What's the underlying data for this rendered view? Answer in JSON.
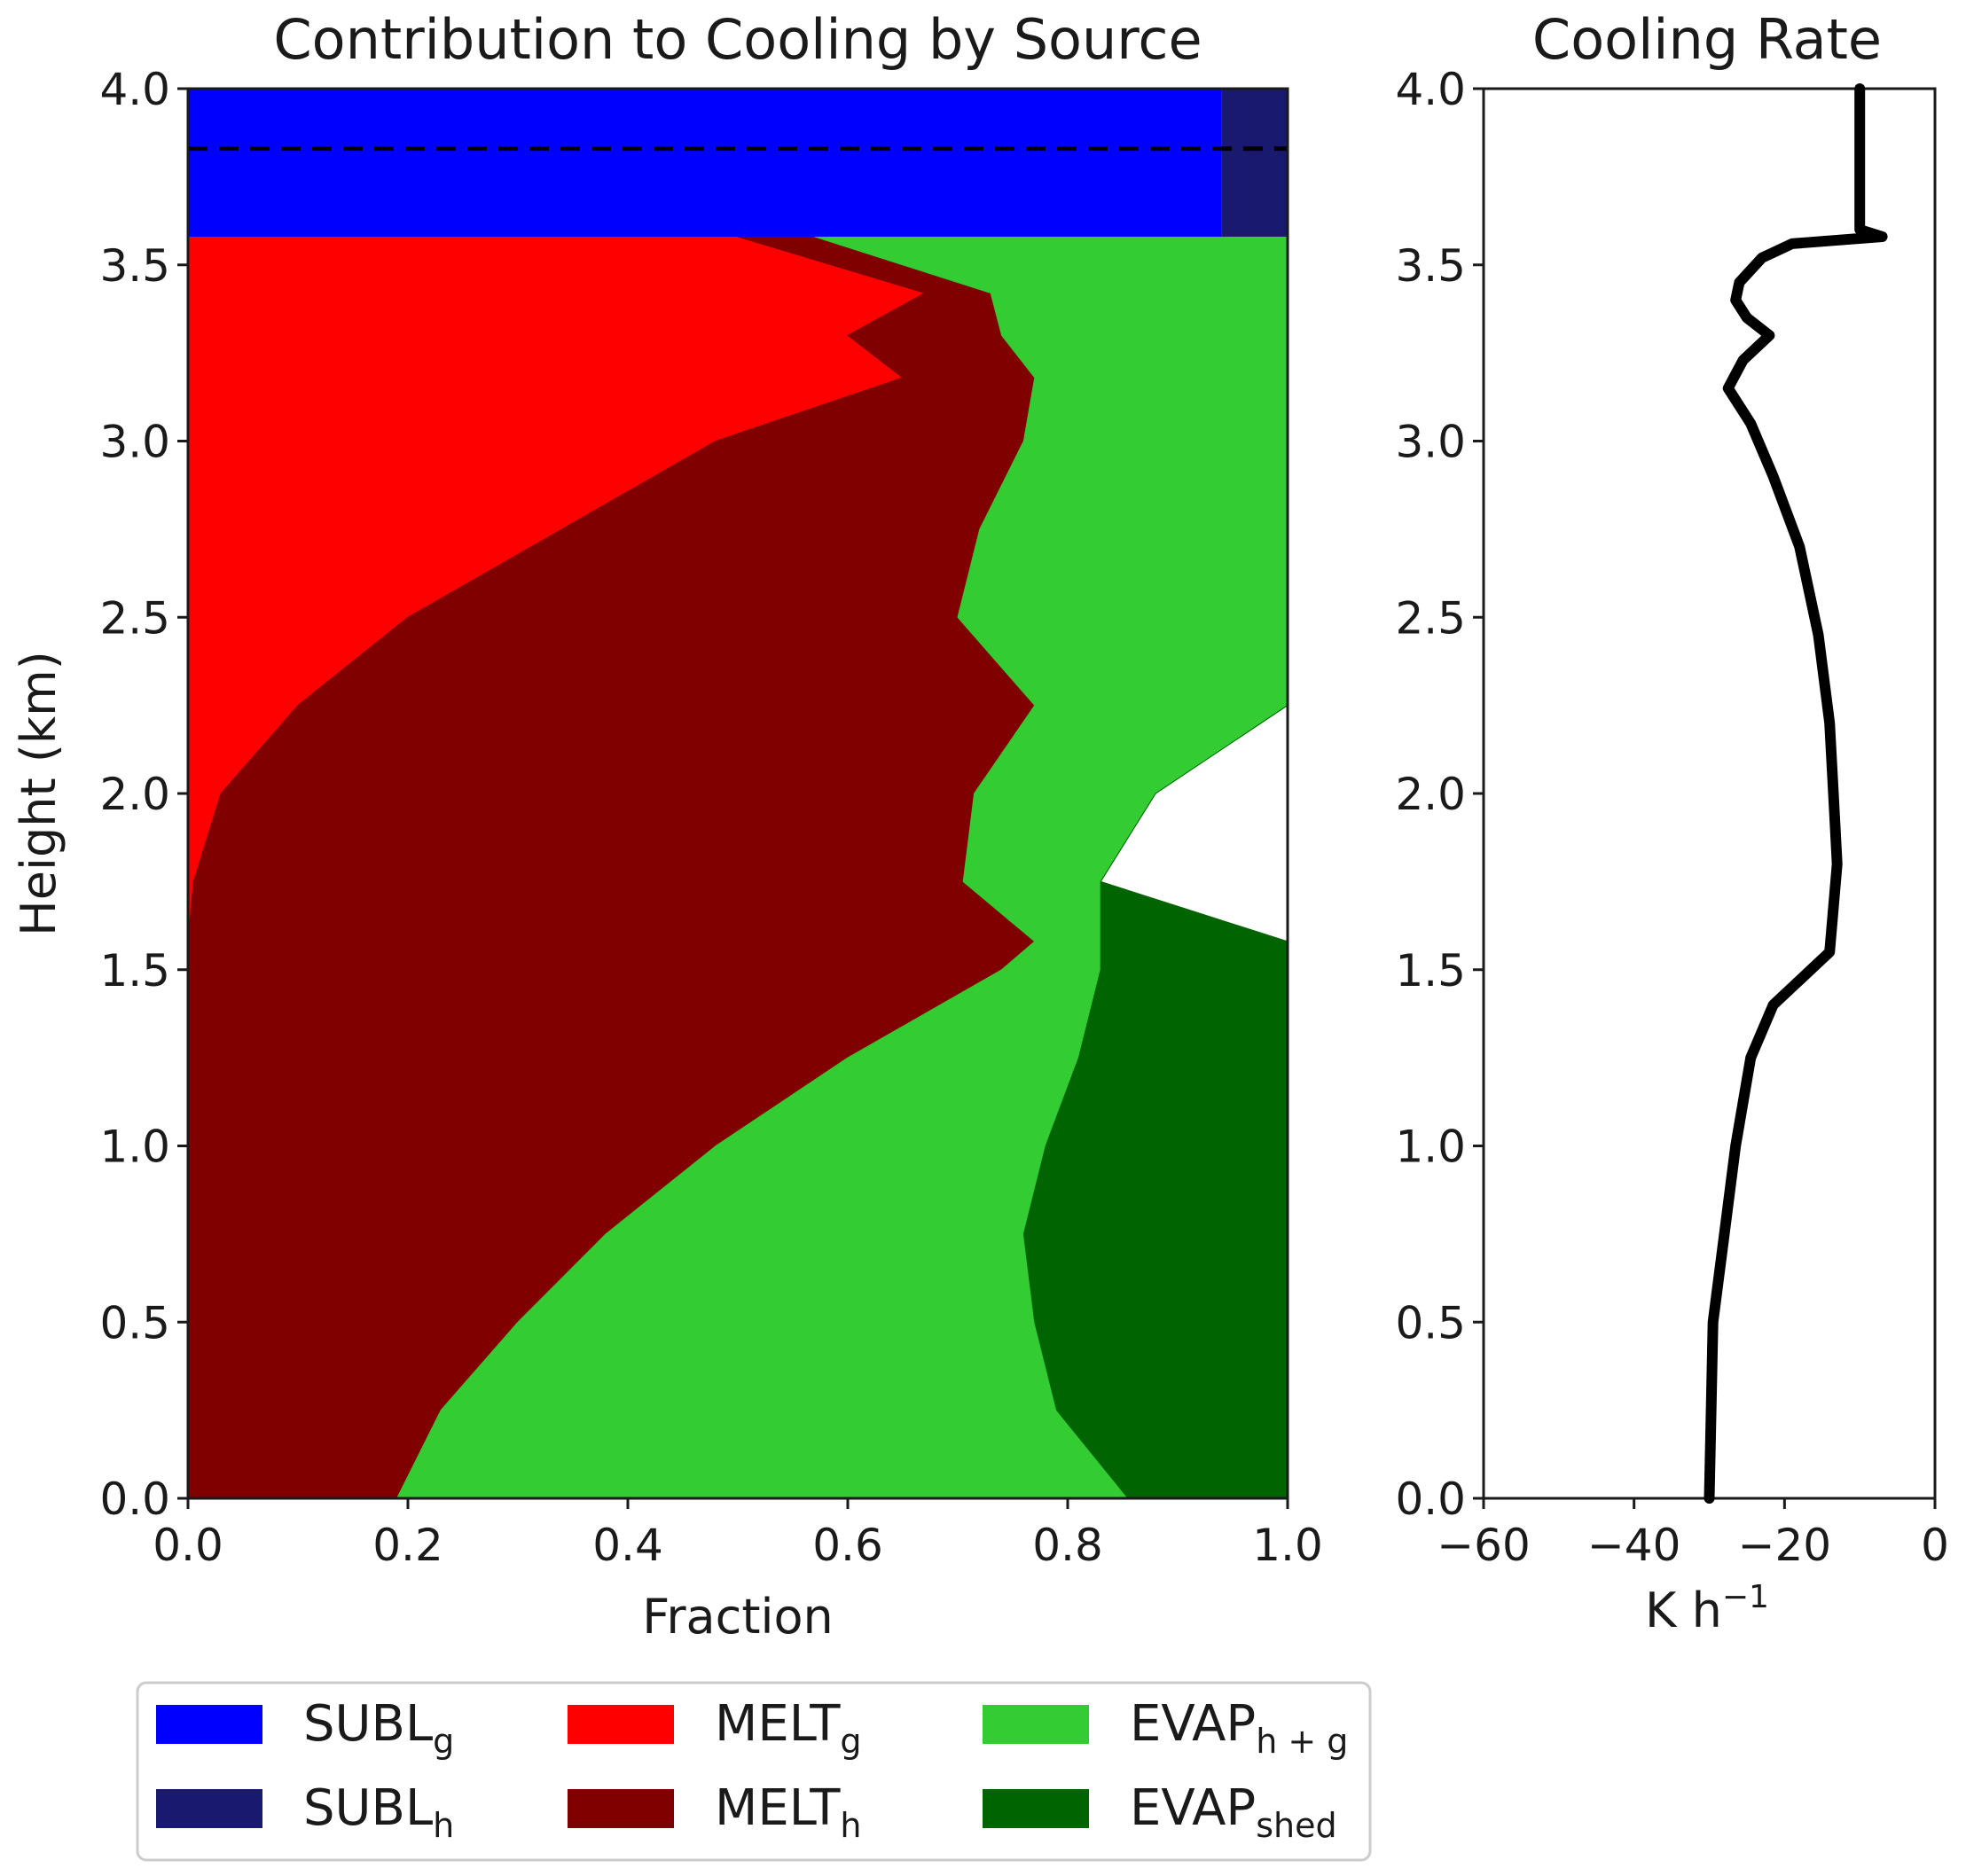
{
  "chart_data": [
    {
      "type": "area",
      "stacked": true,
      "title": "Contribution to Cooling by Source",
      "xlabel": "Fraction",
      "ylabel": "Height (km)",
      "xlim": [
        0,
        1
      ],
      "ylim": [
        0,
        4
      ],
      "xticks": [
        "0.0",
        "0.2",
        "0.4",
        "0.6",
        "0.8",
        "1.0"
      ],
      "yticks": [
        "0.0",
        "0.5",
        "1.0",
        "1.5",
        "2.0",
        "2.5",
        "3.0",
        "3.5",
        "4.0"
      ],
      "reference_line": {
        "style": "dashed",
        "height_km": 3.83
      },
      "heights_km": [
        0,
        0.25,
        0.5,
        0.75,
        1.0,
        1.25,
        1.5,
        1.58,
        1.75,
        2.0,
        2.25,
        2.5,
        2.75,
        3.0,
        3.18,
        3.3,
        3.42,
        3.58
      ],
      "series": [
        {
          "key": "melt_g",
          "name": "MELT",
          "sub": "g",
          "color": "#ff0000",
          "values": [
            0,
            0,
            0,
            0,
            0,
            0,
            0,
            0,
            0.005,
            0.03,
            0.1,
            0.2,
            0.34,
            0.48,
            0.65,
            0.6,
            0.67,
            0.5
          ]
        },
        {
          "key": "melt_h",
          "name": "MELT",
          "sub": "h",
          "color": "#800000",
          "values": [
            0.19,
            0.23,
            0.3,
            0.38,
            0.48,
            0.6,
            0.74,
            0.77,
            0.7,
            0.685,
            0.67,
            0.5,
            0.38,
            0.28,
            0.12,
            0.14,
            0.06,
            0.07
          ]
        },
        {
          "key": "evap_hg",
          "name": "EVAP",
          "sub": "h + g",
          "color": "#33cc33",
          "values": [
            0.665,
            0.56,
            0.47,
            0.38,
            0.3,
            0.21,
            0.09,
            0.06,
            0.125,
            0.165,
            0.23,
            0.3,
            0.28,
            0.24,
            0.23,
            0.26,
            0.27,
            0.43
          ]
        },
        {
          "key": "evap_shed",
          "name": "EVAP",
          "sub": "shed",
          "color": "#006400",
          "values": [
            0.145,
            0.21,
            0.23,
            0.24,
            0.22,
            0.19,
            0.17,
            0.17,
            0,
            0,
            0,
            0,
            0,
            0,
            0,
            0,
            0,
            0
          ]
        }
      ],
      "top_layer": {
        "from_km": 3.58,
        "to_km": 4.0,
        "series": [
          {
            "key": "subl_g",
            "name": "SUBL",
            "sub": "g",
            "color": "#0000ff",
            "value": 0.94
          },
          {
            "key": "subl_h",
            "name": "SUBL",
            "sub": "h",
            "color": "#191970",
            "value": 0.06
          }
        ]
      }
    },
    {
      "type": "line",
      "title": "Cooling Rate",
      "xlabel": "K h",
      "xlabel_sup": "−1",
      "xlim": [
        -60,
        0
      ],
      "ylim": [
        0,
        4
      ],
      "xticks": [
        "−60",
        "−40",
        "−20",
        "0"
      ],
      "yticks": [
        "0.0",
        "0.5",
        "1.0",
        "1.5",
        "2.0",
        "2.5",
        "3.0",
        "3.5",
        "4.0"
      ],
      "color": "#000000",
      "points": [
        [
          -30,
          0
        ],
        [
          -29.5,
          0.5
        ],
        [
          -28,
          0.75
        ],
        [
          -26.5,
          1.0
        ],
        [
          -24.5,
          1.25
        ],
        [
          -21.5,
          1.4
        ],
        [
          -14,
          1.55
        ],
        [
          -13,
          1.8
        ],
        [
          -13.5,
          2.0
        ],
        [
          -14,
          2.2
        ],
        [
          -15.5,
          2.45
        ],
        [
          -18,
          2.7
        ],
        [
          -21.5,
          2.9
        ],
        [
          -24.5,
          3.05
        ],
        [
          -27.5,
          3.15
        ],
        [
          -25.5,
          3.23
        ],
        [
          -22,
          3.3
        ],
        [
          -25,
          3.35
        ],
        [
          -26.5,
          3.4
        ],
        [
          -26,
          3.45
        ],
        [
          -23,
          3.52
        ],
        [
          -19,
          3.56
        ],
        [
          -7,
          3.58
        ],
        [
          -10,
          3.6
        ],
        [
          -10,
          3.8
        ],
        [
          -10,
          4.0
        ]
      ]
    }
  ],
  "legend": {
    "position": "bottom",
    "items": [
      {
        "name": "SUBL",
        "sub": "g",
        "color": "#0000ff"
      },
      {
        "name": "SUBL",
        "sub": "h",
        "color": "#191970"
      },
      {
        "name": "MELT",
        "sub": "g",
        "color": "#ff0000"
      },
      {
        "name": "MELT",
        "sub": "h",
        "color": "#800000"
      },
      {
        "name": "EVAP",
        "sub": "h + g",
        "color": "#33cc33"
      },
      {
        "name": "EVAP",
        "sub": "shed",
        "color": "#006400"
      }
    ]
  }
}
